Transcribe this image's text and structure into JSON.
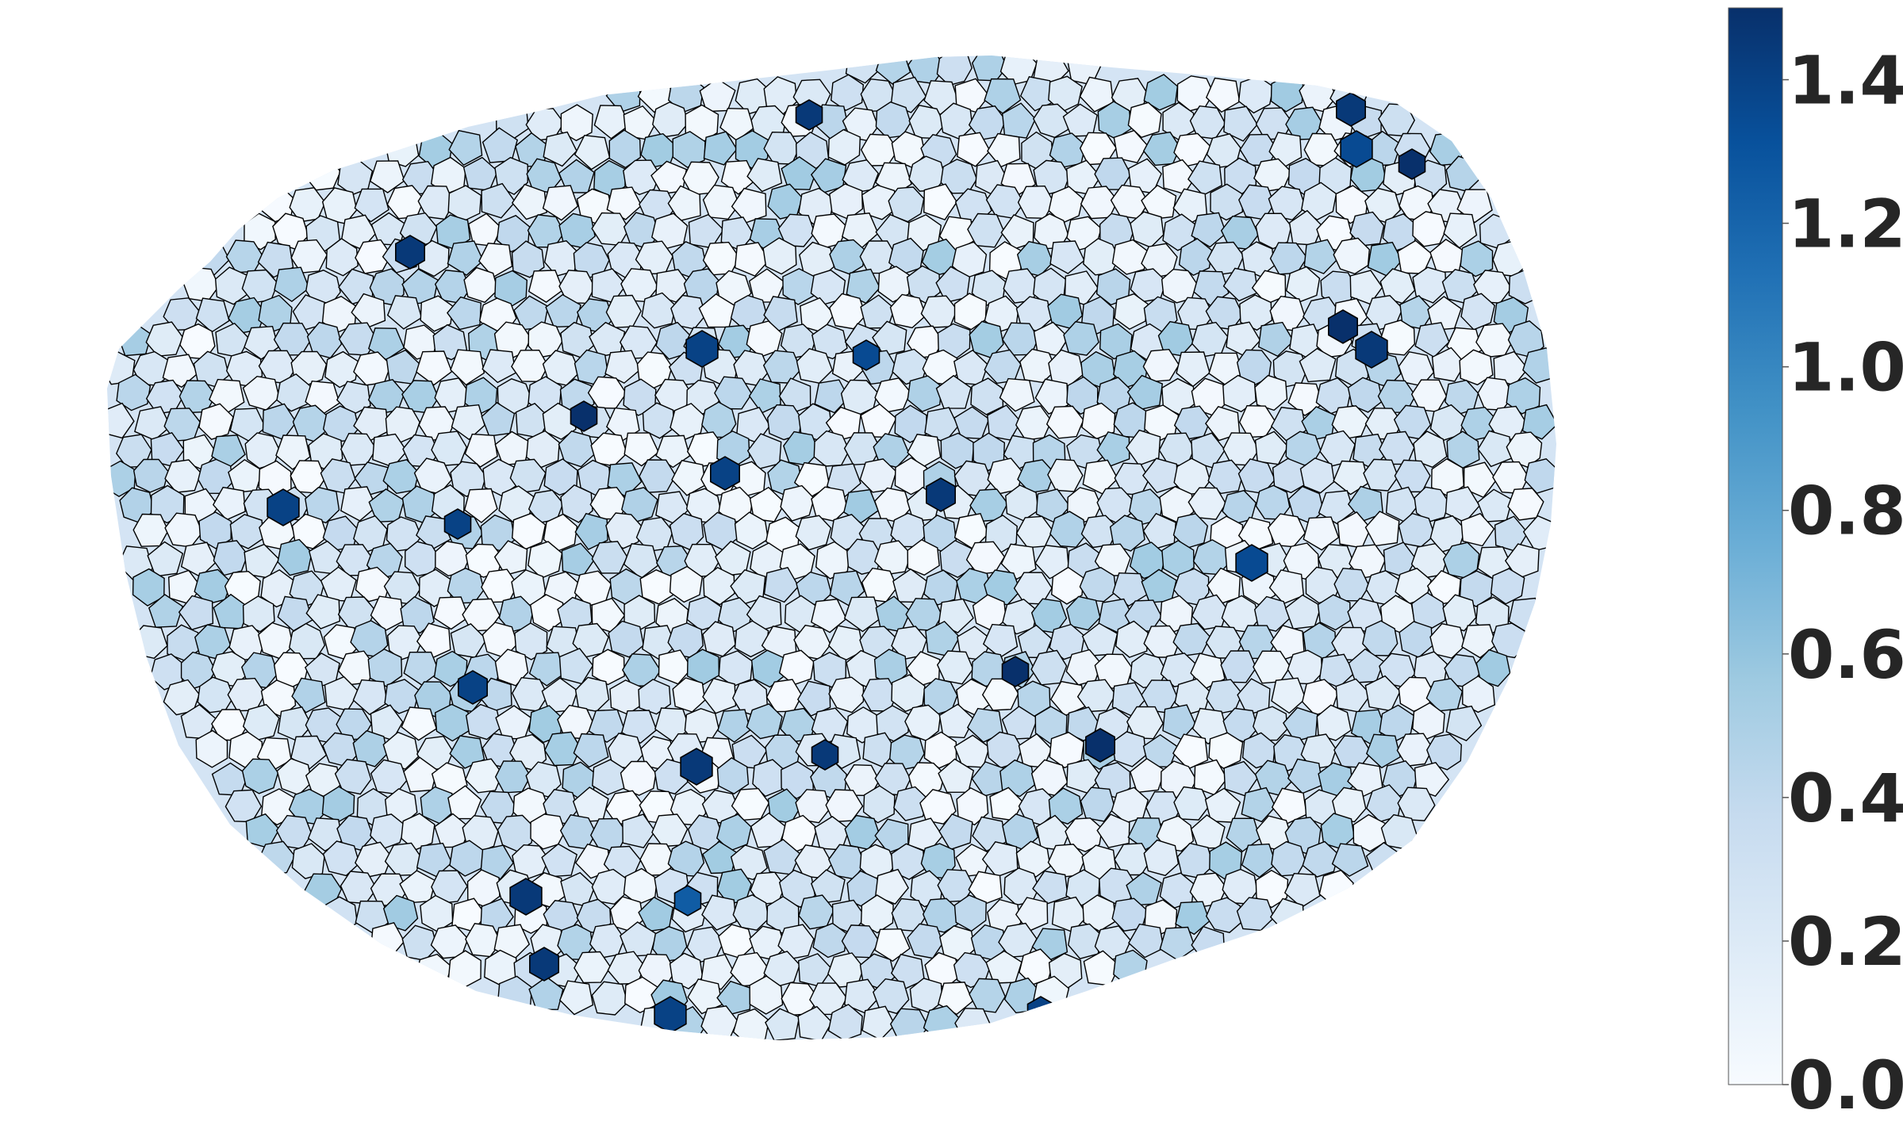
{
  "chart_data": {
    "type": "heatmap",
    "title": "",
    "xlabel": "",
    "ylabel": "",
    "colormap": "Blues",
    "colorbar": {
      "min": 0.0,
      "max": 1.5,
      "ticks": [
        0.0,
        0.2,
        0.4,
        0.6,
        0.8,
        1.0,
        1.2,
        1.4
      ],
      "tick_labels": [
        "0.0",
        "0.2",
        "0.4",
        "0.6",
        "0.8",
        "1.0",
        "1.2",
        "1.4"
      ],
      "placement": "right"
    },
    "axes": "off",
    "cell_edge_color": "#000000",
    "high_value_cells": [
      {
        "value": 1.45
      },
      {
        "value": 1.45
      },
      {
        "value": 1.35
      },
      {
        "value": 1.5
      },
      {
        "value": 1.45
      },
      {
        "value": 1.4
      },
      {
        "value": 1.35
      },
      {
        "value": 1.5
      },
      {
        "value": 1.45
      },
      {
        "value": 1.5
      },
      {
        "value": 1.4
      },
      {
        "value": 1.4
      },
      {
        "value": 1.4
      },
      {
        "value": 1.45
      },
      {
        "value": 1.35
      },
      {
        "value": 1.5
      },
      {
        "value": 1.4
      },
      {
        "value": 1.45
      },
      {
        "value": 1.45
      },
      {
        "value": 1.5
      },
      {
        "value": 1.45
      },
      {
        "value": 1.25
      },
      {
        "value": 1.45
      },
      {
        "value": 1.4
      },
      {
        "value": 1.4
      }
    ],
    "background_value_range": [
      0.0,
      0.55
    ]
  }
}
